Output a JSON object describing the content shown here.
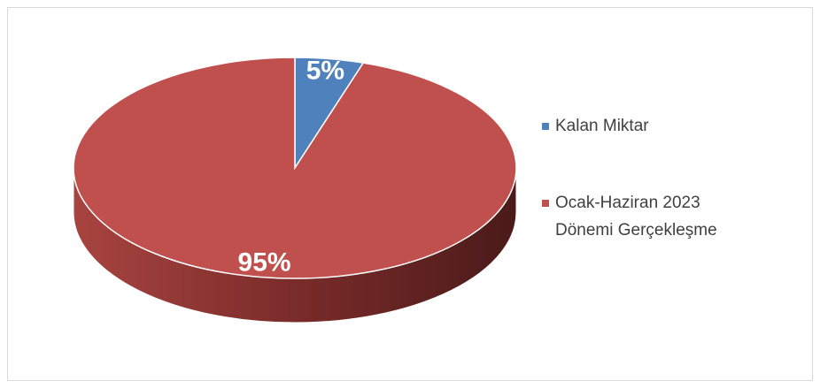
{
  "chart_data": {
    "type": "pie",
    "categories": [
      "Kalan Miktar",
      "Ocak-Haziran 2023 Dönemi Gerçekleşme"
    ],
    "values": [
      5,
      95
    ],
    "value_labels": [
      "5%",
      "95%"
    ],
    "colors": [
      "#4f81bd",
      "#c0504d"
    ],
    "legend": "right"
  }
}
